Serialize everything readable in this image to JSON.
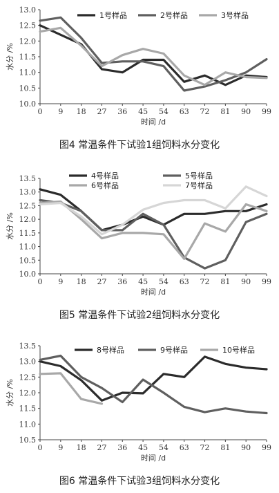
{
  "chart_data": [
    {
      "type": "line",
      "caption": "图4 常温条件下试验1组饲料水分变化",
      "xlabel": "时间 /d",
      "ylabel": "水分 /%",
      "x": [
        0,
        9,
        18,
        27,
        36,
        45,
        54,
        63,
        72,
        81,
        90,
        99
      ],
      "ylim": [
        10.0,
        13.0
      ],
      "yticks": [
        "10.0",
        "10.5",
        "11.0",
        "11.5",
        "12.0",
        "12.5",
        "13.0"
      ],
      "legend_position": "top",
      "series": [
        {
          "name": "1号样品",
          "color": "#2b2b2b",
          "values": [
            12.5,
            12.2,
            11.9,
            11.1,
            11.0,
            11.4,
            11.4,
            10.7,
            10.9,
            10.6,
            10.9,
            10.85
          ]
        },
        {
          "name": "2号样品",
          "color": "#5f5f5f",
          "values": [
            12.65,
            12.75,
            12.1,
            11.3,
            11.35,
            11.35,
            11.2,
            10.42,
            10.55,
            10.75,
            11.0,
            11.42
          ]
        },
        {
          "name": "3号样品",
          "color": "#a8a8a8",
          "values": [
            12.3,
            12.42,
            11.85,
            11.2,
            11.55,
            11.75,
            11.6,
            10.9,
            10.6,
            11.0,
            10.85,
            10.82
          ]
        }
      ]
    },
    {
      "type": "line",
      "caption": "图5 常温条件下试验2组饲料水分变化",
      "xlabel": "时间 /d",
      "ylabel": "水分 /%",
      "x": [
        0,
        9,
        18,
        27,
        36,
        45,
        54,
        63,
        72,
        81,
        90,
        99
      ],
      "ylim": [
        10.0,
        13.5
      ],
      "yticks": [
        "10.0",
        "10.5",
        "11.0",
        "11.5",
        "12.0",
        "12.5",
        "13.0",
        "13.5"
      ],
      "legend_position": "top",
      "series": [
        {
          "name": "4号样品",
          "color": "#2b2b2b",
          "values": [
            13.1,
            12.9,
            12.3,
            11.6,
            11.8,
            12.1,
            11.8,
            12.2,
            12.2,
            12.3,
            12.3,
            12.55
          ]
        },
        {
          "name": "5号样品",
          "color": "#5f5f5f",
          "values": [
            12.7,
            12.6,
            12.3,
            11.6,
            11.6,
            12.2,
            11.8,
            10.6,
            10.2,
            10.5,
            11.9,
            12.2
          ]
        },
        {
          "name": "6号样品",
          "color": "#a8a8a8",
          "values": [
            12.6,
            12.65,
            12.0,
            11.3,
            11.5,
            11.5,
            11.45,
            10.55,
            11.85,
            11.55,
            12.55,
            12.3
          ]
        },
        {
          "name": "7号样品",
          "color": "#d6d6d6",
          "values": [
            12.55,
            12.6,
            12.1,
            11.45,
            11.8,
            12.35,
            12.6,
            12.7,
            12.7,
            12.4,
            13.2,
            12.85
          ]
        }
      ]
    },
    {
      "type": "line",
      "caption": "图6 常温条件下试验3组饲料水分变化",
      "xlabel": "时间 /d",
      "ylabel": "水分 /%",
      "x": [
        0,
        9,
        18,
        27,
        36,
        45,
        54,
        63,
        72,
        81,
        90,
        99
      ],
      "ylim": [
        10.5,
        13.5
      ],
      "yticks": [
        "10.5",
        "11.0",
        "11.5",
        "12.0",
        "12.5",
        "13.0",
        "13.5"
      ],
      "legend_position": "top",
      "series": [
        {
          "name": "8号样品",
          "color": "#2b2b2b",
          "values": [
            13.0,
            12.85,
            12.4,
            11.75,
            12.0,
            11.98,
            12.6,
            12.5,
            13.15,
            12.92,
            12.8,
            12.75
          ]
        },
        {
          "name": "9号样品",
          "color": "#5f5f5f",
          "values": [
            13.05,
            13.18,
            12.5,
            12.15,
            11.7,
            12.42,
            12.0,
            11.55,
            11.38,
            11.5,
            11.4,
            11.35
          ]
        },
        {
          "name": "10号样品",
          "color": "#a8a8a8",
          "values": [
            12.6,
            12.62,
            11.8,
            11.65,
            null,
            null,
            null,
            null,
            null,
            null,
            null,
            null
          ]
        }
      ]
    }
  ]
}
